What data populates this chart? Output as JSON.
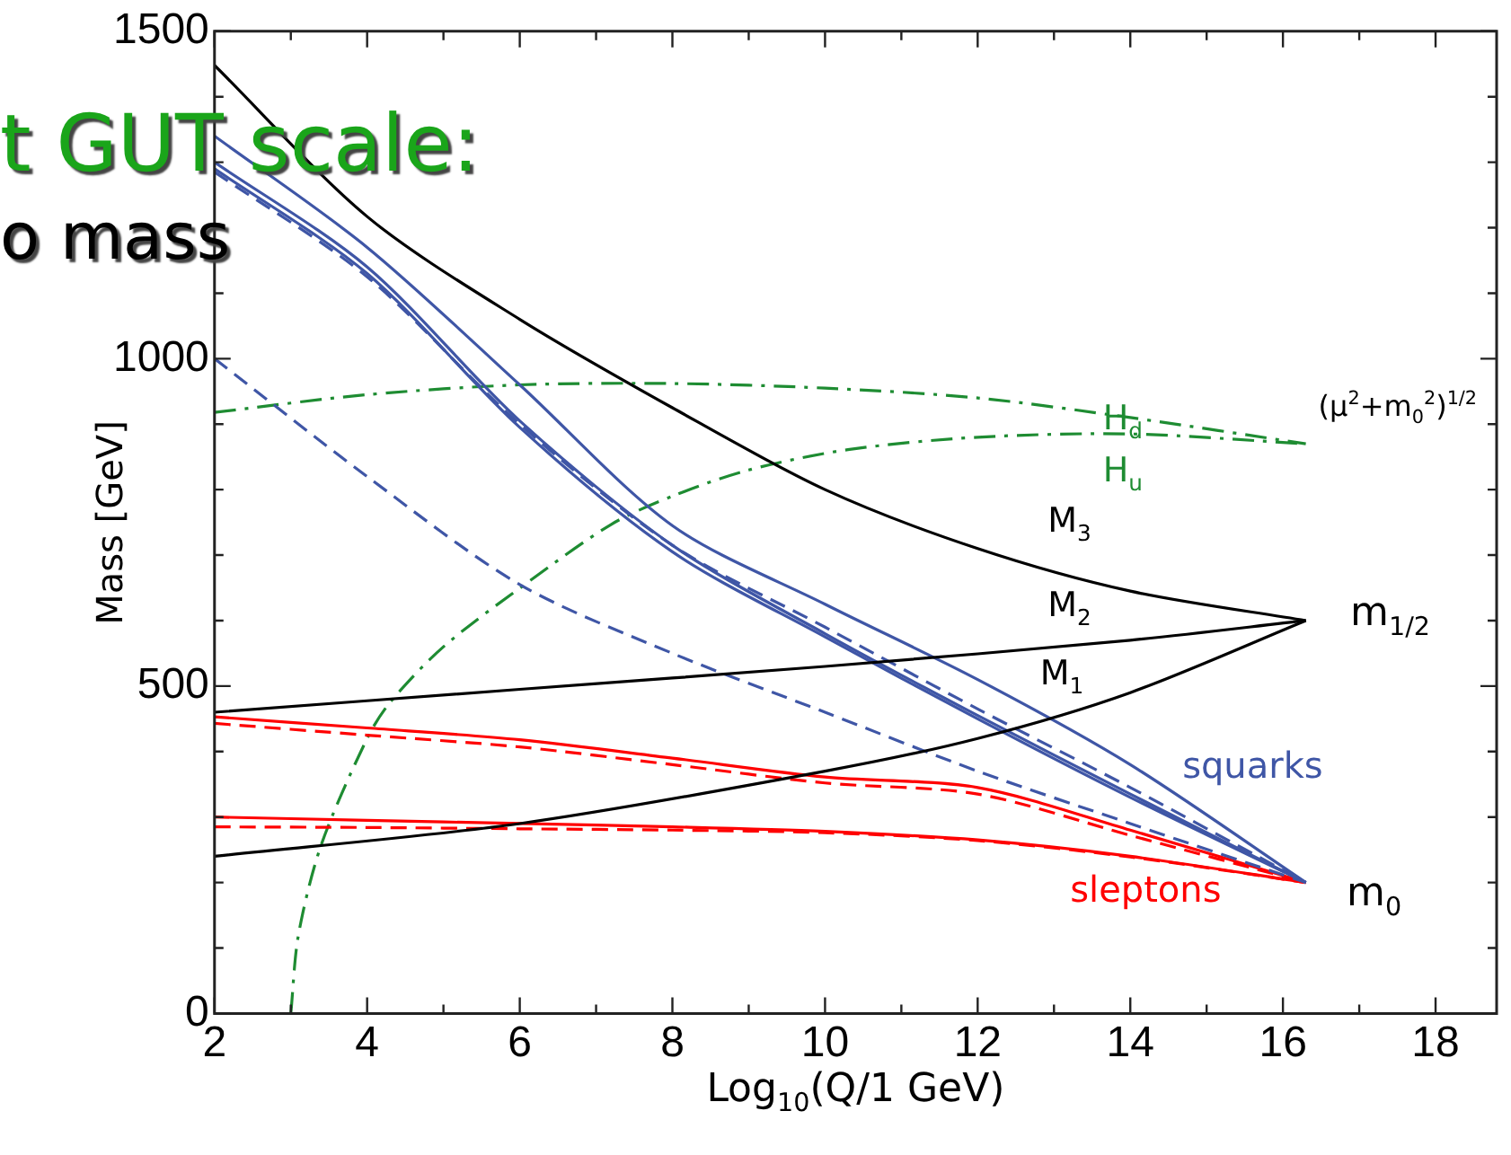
{
  "chart_data": {
    "type": "line",
    "xlabel": "Log$_{10}$(Q/1 GeV)",
    "ylabel": "Mass [GeV]",
    "xlim": [
      2,
      18.8
    ],
    "xticks": [
      2,
      {
        "value": 3,
        "label": null
      },
      4,
      {
        "value": 5,
        "label": null
      },
      6,
      {
        "value": 7,
        "label": null
      },
      8,
      {
        "value": 9,
        "label": null
      },
      10,
      {
        "value": 11,
        "label": null
      },
      12,
      {
        "value": 13,
        "label": null
      },
      14,
      {
        "value": 15,
        "label": null
      },
      16,
      {
        "value": 17,
        "label": null
      },
      18
    ],
    "ylim": [
      0,
      1500
    ],
    "yticks": [
      0,
      {
        "value": 100,
        "label": null
      },
      {
        "value": 200,
        "label": null
      },
      {
        "value": 300,
        "label": null
      },
      {
        "value": 400,
        "label": null
      },
      500,
      {
        "value": 600,
        "label": null
      },
      {
        "value": 700,
        "label": null
      },
      {
        "value": 800,
        "label": null
      },
      {
        "value": 900,
        "label": null
      },
      1000,
      {
        "value": 1100,
        "label": null
      },
      {
        "value": 1200,
        "label": null
      },
      {
        "value": 1300,
        "label": null
      },
      {
        "value": 1400,
        "label": null
      },
      1500
    ],
    "grid": false,
    "legend": false,
    "marker": "none",
    "series": [
      {
        "color": "#000000",
        "line_style": "solid",
        "x": [
          2,
          4,
          6,
          8,
          10,
          12,
          14,
          16.3
        ],
        "values": [
          1448,
          1217,
          1060,
          925,
          800,
          710,
          645,
          600
        ]
      },
      {
        "color": "#000000",
        "line_style": "solid",
        "x": [
          2,
          6,
          10,
          14,
          16.3
        ],
        "values": [
          460,
          495,
          530,
          570,
          600
        ]
      },
      {
        "color": "#000000",
        "line_style": "solid",
        "x": [
          2,
          6,
          10,
          12,
          14,
          16.3
        ],
        "values": [
          240,
          290,
          370,
          420,
          490,
          600
        ]
      },
      {
        "color": "#3f56a6",
        "line_style": "solid",
        "x": [
          2,
          4,
          6,
          8,
          10,
          12,
          14,
          16.3
        ],
        "values": [
          1340,
          1170,
          960,
          745,
          625,
          510,
          380,
          200
        ]
      },
      {
        "color": "#3f56a6",
        "line_style": "solid",
        "x": [
          2,
          4,
          6,
          8,
          10,
          12,
          14,
          16.3
        ],
        "values": [
          1300,
          1140,
          905,
          715,
          580,
          455,
          335,
          200
        ]
      },
      {
        "color": "#3f56a6",
        "line_style": "solid",
        "x": [
          2,
          4,
          6,
          8,
          10,
          12,
          14,
          16.3
        ],
        "values": [
          1290,
          1130,
          895,
          705,
          575,
          450,
          330,
          200
        ]
      },
      {
        "color": "#3f56a6",
        "line_style": "dashed",
        "x": [
          2,
          4,
          6,
          8,
          10,
          12,
          14,
          16.3
        ],
        "values": [
          1285,
          1125,
          900,
          715,
          590,
          465,
          345,
          200
        ]
      },
      {
        "color": "#3f56a6",
        "line_style": "dashed",
        "x": [
          2,
          4,
          6,
          8,
          10,
          12,
          14,
          16.3
        ],
        "values": [
          1000,
          820,
          655,
          550,
          460,
          370,
          290,
          200
        ]
      },
      {
        "color": "#ff0000",
        "line_style": "solid",
        "x": [
          2,
          4,
          6,
          8,
          10,
          12,
          14,
          16.3
        ],
        "values": [
          453,
          436,
          418,
          390,
          361,
          345,
          280,
          200
        ]
      },
      {
        "color": "#ff0000",
        "line_style": "dashed",
        "x": [
          2,
          4,
          6,
          8,
          10,
          12,
          14,
          16.3
        ],
        "values": [
          443,
          425,
          407,
          380,
          352,
          335,
          272,
          200
        ]
      },
      {
        "color": "#ff0000",
        "line_style": "solid",
        "x": [
          2,
          4,
          6,
          8,
          10,
          12,
          14,
          16.3
        ],
        "values": [
          300,
          295,
          290,
          285,
          278,
          265,
          240,
          200
        ]
      },
      {
        "color": "#ff0000",
        "line_style": "dashed",
        "x": [
          2,
          4,
          6,
          8,
          10,
          12,
          14,
          16.3
        ],
        "values": [
          285,
          284,
          282,
          280,
          276,
          264,
          239,
          200
        ]
      },
      {
        "color": "#1e8c32",
        "line_style": "dashdot",
        "x": [
          2,
          4,
          6,
          8,
          10,
          12,
          14,
          16.3
        ],
        "values": [
          918,
          945,
          960,
          962,
          955,
          940,
          910,
          870
        ]
      },
      {
        "color": "#1e8c32",
        "line_style": "dashdot",
        "x": [
          3,
          3.1,
          3.4,
          4,
          4.3,
          5,
          6.1,
          7.2,
          8,
          9,
          10.3,
          12,
          14,
          16.3
        ],
        "values": [
          0,
          120,
          258,
          420,
          475,
          560,
          658,
          747,
          790,
          830,
          861,
          880,
          885,
          870
        ]
      }
    ],
    "annotations": [
      "M$_{3}$",
      "M$_{2}$",
      "M$_{1}$",
      "H$_{d}$",
      "H$_{u}$",
      "(μ$^{2}$+m$_{0}$$^{2}$)$^{1/2}$",
      "m$_{1/2}$",
      "squarks",
      "sleptons",
      "m$_{0}$",
      "t GUT scale:",
      "o mass"
    ]
  }
}
